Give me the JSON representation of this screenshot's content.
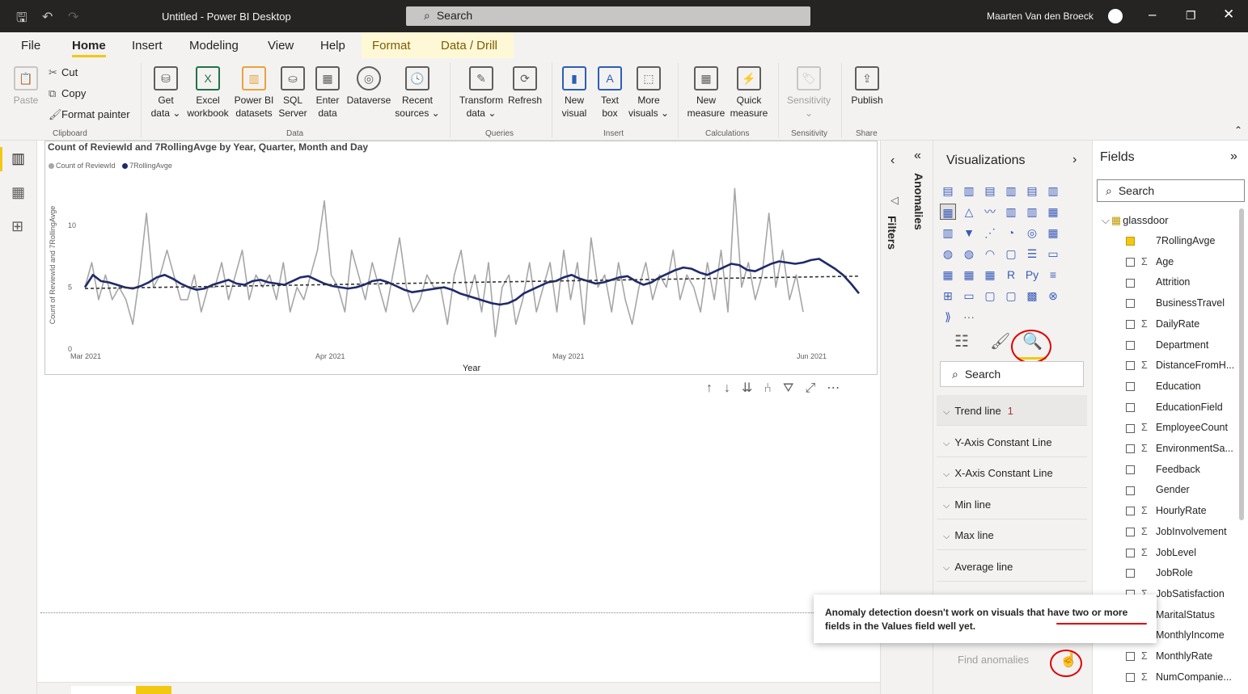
{
  "titlebar": {
    "title": "Untitled - Power BI Desktop",
    "search_placeholder": "Search",
    "user": "Maarten Van den Broeck"
  },
  "menu": {
    "tabs": [
      "File",
      "Home",
      "Insert",
      "Modeling",
      "View",
      "Help",
      "Format",
      "Data / Drill"
    ],
    "active": "Home"
  },
  "ribbon": {
    "clipboard": {
      "paste": "Paste",
      "cut": "Cut",
      "copy": "Copy",
      "format_painter": "Format painter",
      "group": "Clipboard"
    },
    "data": {
      "get_data": [
        "Get",
        "data ⌄"
      ],
      "excel": [
        "Excel",
        "workbook"
      ],
      "pbi_datasets": [
        "Power BI",
        "datasets"
      ],
      "sql": [
        "SQL",
        "Server"
      ],
      "enter": [
        "Enter",
        "data"
      ],
      "dataverse": [
        "Dataverse",
        ""
      ],
      "recent": [
        "Recent",
        "sources ⌄"
      ],
      "group": "Data"
    },
    "queries": {
      "transform": [
        "Transform",
        "data ⌄"
      ],
      "refresh": [
        "Refresh",
        ""
      ],
      "group": "Queries"
    },
    "insert": {
      "new_visual": [
        "New",
        "visual"
      ],
      "text_box": [
        "Text",
        "box"
      ],
      "more_visuals": [
        "More",
        "visuals ⌄"
      ],
      "group": "Insert"
    },
    "calculations": {
      "new_measure": [
        "New",
        "measure"
      ],
      "quick_measure": [
        "Quick",
        "measure"
      ],
      "group": "Calculations"
    },
    "sensitivity": {
      "label": [
        "Sensitivity",
        "⌄"
      ],
      "group": "Sensitivity"
    },
    "share": {
      "publish": [
        "Publish",
        ""
      ],
      "group": "Share"
    }
  },
  "visual": {
    "title": "Count of ReviewId and 7RollingAvge by Year, Quarter, Month and Day",
    "legend": [
      {
        "name": "Count of ReviewId",
        "color": "#a6a6a6"
      },
      {
        "name": "7RollingAvge",
        "color": "#1f2a6b"
      }
    ]
  },
  "chart_data": {
    "type": "line",
    "title": "Count of ReviewId and 7RollingAvge by Year, Quarter, Month and Day",
    "xlabel": "Year",
    "ylabel": "Count of ReviewId and 7RollingAvge",
    "x_ticks": [
      "Mar 2021",
      "Apr 2021",
      "May 2021",
      "Jun 2021"
    ],
    "y_ticks": [
      0,
      5,
      10
    ],
    "ylim": [
      0,
      14
    ],
    "series": [
      {
        "name": "Count of ReviewId",
        "color": "#a6a6a6",
        "values": [
          5,
          7,
          4,
          6,
          4,
          5,
          4,
          2,
          6,
          11,
          5,
          6,
          8,
          6,
          4,
          4,
          6,
          3,
          5,
          5,
          7,
          4,
          6,
          8,
          4,
          6,
          5,
          6,
          4,
          7,
          3,
          5,
          4,
          6,
          8,
          12,
          6,
          5,
          3,
          8,
          6,
          4,
          7,
          5,
          3,
          6,
          9,
          5,
          3,
          4,
          6,
          5,
          5,
          2,
          6,
          8,
          4,
          6,
          3,
          7,
          1,
          5,
          6,
          2,
          4,
          7,
          3,
          5,
          7,
          3,
          8,
          4,
          7,
          2,
          9,
          5,
          6,
          3,
          7,
          4,
          2,
          5,
          7,
          4,
          6,
          5,
          8,
          4,
          6,
          5,
          3,
          7,
          4,
          8,
          3,
          13,
          5,
          7,
          4,
          6,
          11,
          5,
          8,
          4,
          6,
          3
        ]
      },
      {
        "name": "7RollingAvge",
        "color": "#1f2a6b",
        "values": [
          5,
          6,
          5.5,
          5.4,
          5.2,
          5,
          4.9,
          5.1,
          5.4,
          5.8,
          6,
          5.7,
          5.3,
          5,
          4.8,
          4.9,
          5.2,
          5.4,
          5.6,
          5.3,
          5.2,
          5.5,
          5.6,
          5.4,
          5.3,
          5.2,
          5.5,
          5.8,
          5.9,
          5.6,
          5.3,
          5.1,
          5,
          4.9,
          5,
          5.2,
          5.5,
          5.6,
          5.4,
          5.1,
          4.8,
          4.6,
          4.7,
          4.8,
          4.9,
          5,
          4.8,
          4.5,
          4.3,
          4.1,
          3.9,
          3.7,
          3.6,
          3.7,
          4,
          4.5,
          4.8,
          5.1,
          5.4,
          5.5,
          5.8,
          6,
          5.7,
          5.5,
          5.3,
          5.4,
          5.6,
          5.8,
          5.9,
          5.5,
          5.2,
          5.4,
          5.8,
          6.1,
          6.4,
          6.6,
          6.5,
          6.2,
          6,
          6.3,
          6.6,
          6.9,
          6.8,
          6.4,
          6.3,
          6.6,
          6.9,
          7.1,
          7,
          6.9,
          7,
          7.2,
          7.3,
          6.9,
          6.5,
          6,
          5.3,
          4.5
        ]
      },
      {
        "name": "Trend line",
        "color": "#333333",
        "values": [
          4.9,
          5.9
        ]
      }
    ]
  },
  "visualizations": {
    "title": "Visualizations",
    "search_placeholder": "Search",
    "more_label": "···",
    "cards": [
      {
        "label": "Trend line",
        "count": "1"
      },
      {
        "label": "Y-Axis Constant Line",
        "count": ""
      },
      {
        "label": "X-Axis Constant Line",
        "count": ""
      },
      {
        "label": "Min line",
        "count": ""
      },
      {
        "label": "Max line",
        "count": ""
      },
      {
        "label": "Average line",
        "count": ""
      }
    ],
    "find_anomalies": "Find anomalies"
  },
  "tooltip": {
    "text": "Anomaly detection doesn't work on visuals that have two or more fields in the Values field well yet."
  },
  "filters": {
    "label": "Filters"
  },
  "anomalies": {
    "label": "Anomalies"
  },
  "fields": {
    "title": "Fields",
    "search_placeholder": "Search",
    "table": "glassdoor",
    "items": [
      {
        "name": "7RollingAvge",
        "sigma": "",
        "checked": true
      },
      {
        "name": "Age",
        "sigma": "Σ",
        "checked": false
      },
      {
        "name": "Attrition",
        "sigma": "",
        "checked": false
      },
      {
        "name": "BusinessTravel",
        "sigma": "",
        "checked": false
      },
      {
        "name": "DailyRate",
        "sigma": "Σ",
        "checked": false
      },
      {
        "name": "Department",
        "sigma": "",
        "checked": false
      },
      {
        "name": "DistanceFromH...",
        "sigma": "Σ",
        "checked": false
      },
      {
        "name": "Education",
        "sigma": "",
        "checked": false
      },
      {
        "name": "EducationField",
        "sigma": "",
        "checked": false
      },
      {
        "name": "EmployeeCount",
        "sigma": "Σ",
        "checked": false
      },
      {
        "name": "EnvironmentSa...",
        "sigma": "Σ",
        "checked": false
      },
      {
        "name": "Feedback",
        "sigma": "",
        "checked": false
      },
      {
        "name": "Gender",
        "sigma": "",
        "checked": false
      },
      {
        "name": "HourlyRate",
        "sigma": "Σ",
        "checked": false
      },
      {
        "name": "JobInvolvement",
        "sigma": "Σ",
        "checked": false
      },
      {
        "name": "JobLevel",
        "sigma": "Σ",
        "checked": false
      },
      {
        "name": "JobRole",
        "sigma": "",
        "checked": false
      },
      {
        "name": "JobSatisfaction",
        "sigma": "Σ",
        "checked": false
      },
      {
        "name": "MaritalStatus",
        "sigma": "",
        "checked": false
      },
      {
        "name": "MonthlyIncome",
        "sigma": "",
        "checked": false
      },
      {
        "name": "MonthlyRate",
        "sigma": "Σ",
        "checked": false
      },
      {
        "name": "NumCompanie...",
        "sigma": "Σ",
        "checked": false
      }
    ]
  }
}
